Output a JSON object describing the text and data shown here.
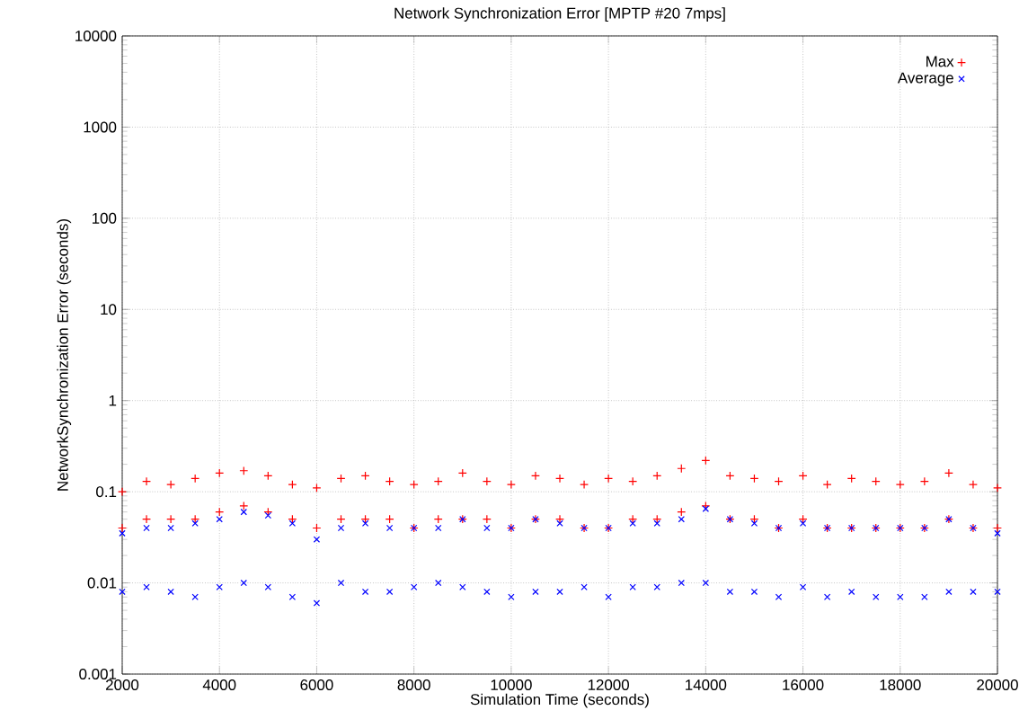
{
  "chart_data": {
    "type": "scatter",
    "title": "Network Synchronization Error [MPTP #20 7mps]",
    "xlabel": "Simulation Time (seconds)",
    "ylabel": "NetworkSynchronization Error (seconds)",
    "x": [
      2000,
      2000,
      2500,
      2500,
      3000,
      3000,
      3500,
      3500,
      4000,
      4000,
      4500,
      4500,
      5000,
      5000,
      5500,
      5500,
      6000,
      6000,
      6500,
      6500,
      7000,
      7000,
      7500,
      7500,
      8000,
      8000,
      8500,
      8500,
      9000,
      9000,
      9500,
      9500,
      10000,
      10000,
      10500,
      10500,
      11000,
      11000,
      11500,
      11500,
      12000,
      12000,
      12500,
      12500,
      13000,
      13000,
      13500,
      13500,
      14000,
      14000,
      14500,
      14500,
      15000,
      15000,
      15500,
      15500,
      16000,
      16000,
      16500,
      16500,
      17000,
      17000,
      17500,
      17500,
      18000,
      18000,
      18500,
      18500,
      19000,
      19000,
      19500,
      19500,
      20000,
      20000
    ],
    "series": [
      {
        "name": "Max",
        "color": "#ff0000",
        "marker": "plus",
        "values": [
          0.1,
          0.04,
          0.13,
          0.05,
          0.12,
          0.05,
          0.14,
          0.05,
          0.16,
          0.06,
          0.17,
          0.07,
          0.15,
          0.06,
          0.12,
          0.05,
          0.11,
          0.04,
          0.14,
          0.05,
          0.15,
          0.05,
          0.13,
          0.05,
          0.12,
          0.04,
          0.13,
          0.05,
          0.16,
          0.05,
          0.13,
          0.05,
          0.12,
          0.04,
          0.15,
          0.05,
          0.14,
          0.05,
          0.12,
          0.04,
          0.14,
          0.04,
          0.13,
          0.05,
          0.15,
          0.05,
          0.18,
          0.06,
          0.22,
          0.07,
          0.15,
          0.05,
          0.14,
          0.05,
          0.13,
          0.04,
          0.15,
          0.05,
          0.12,
          0.04,
          0.14,
          0.04,
          0.13,
          0.04,
          0.12,
          0.04,
          0.13,
          0.04,
          0.16,
          0.05,
          0.12,
          0.04,
          0.11,
          0.04
        ]
      },
      {
        "name": "Average",
        "color": "#0000ff",
        "marker": "cross",
        "values": [
          0.035,
          0.008,
          0.04,
          0.009,
          0.04,
          0.008,
          0.045,
          0.007,
          0.05,
          0.009,
          0.06,
          0.01,
          0.055,
          0.009,
          0.045,
          0.007,
          0.03,
          0.006,
          0.04,
          0.01,
          0.045,
          0.008,
          0.04,
          0.008,
          0.04,
          0.009,
          0.04,
          0.01,
          0.05,
          0.009,
          0.04,
          0.008,
          0.04,
          0.007,
          0.05,
          0.008,
          0.045,
          0.008,
          0.04,
          0.009,
          0.04,
          0.007,
          0.045,
          0.009,
          0.045,
          0.009,
          0.05,
          0.01,
          0.065,
          0.01,
          0.05,
          0.008,
          0.045,
          0.008,
          0.04,
          0.007,
          0.045,
          0.009,
          0.04,
          0.007,
          0.04,
          0.008,
          0.04,
          0.007,
          0.04,
          0.007,
          0.04,
          0.007,
          0.05,
          0.008,
          0.04,
          0.008,
          0.035,
          0.008
        ]
      }
    ],
    "xlim": [
      2000,
      20000
    ],
    "xticks": [
      2000,
      4000,
      6000,
      8000,
      10000,
      12000,
      14000,
      16000,
      18000,
      20000
    ],
    "ylim": [
      0.001,
      10000
    ],
    "yticks": [
      0.001,
      0.01,
      0.1,
      1,
      10,
      100,
      1000,
      10000
    ],
    "log": "y",
    "grid": true,
    "legend": "top right"
  }
}
